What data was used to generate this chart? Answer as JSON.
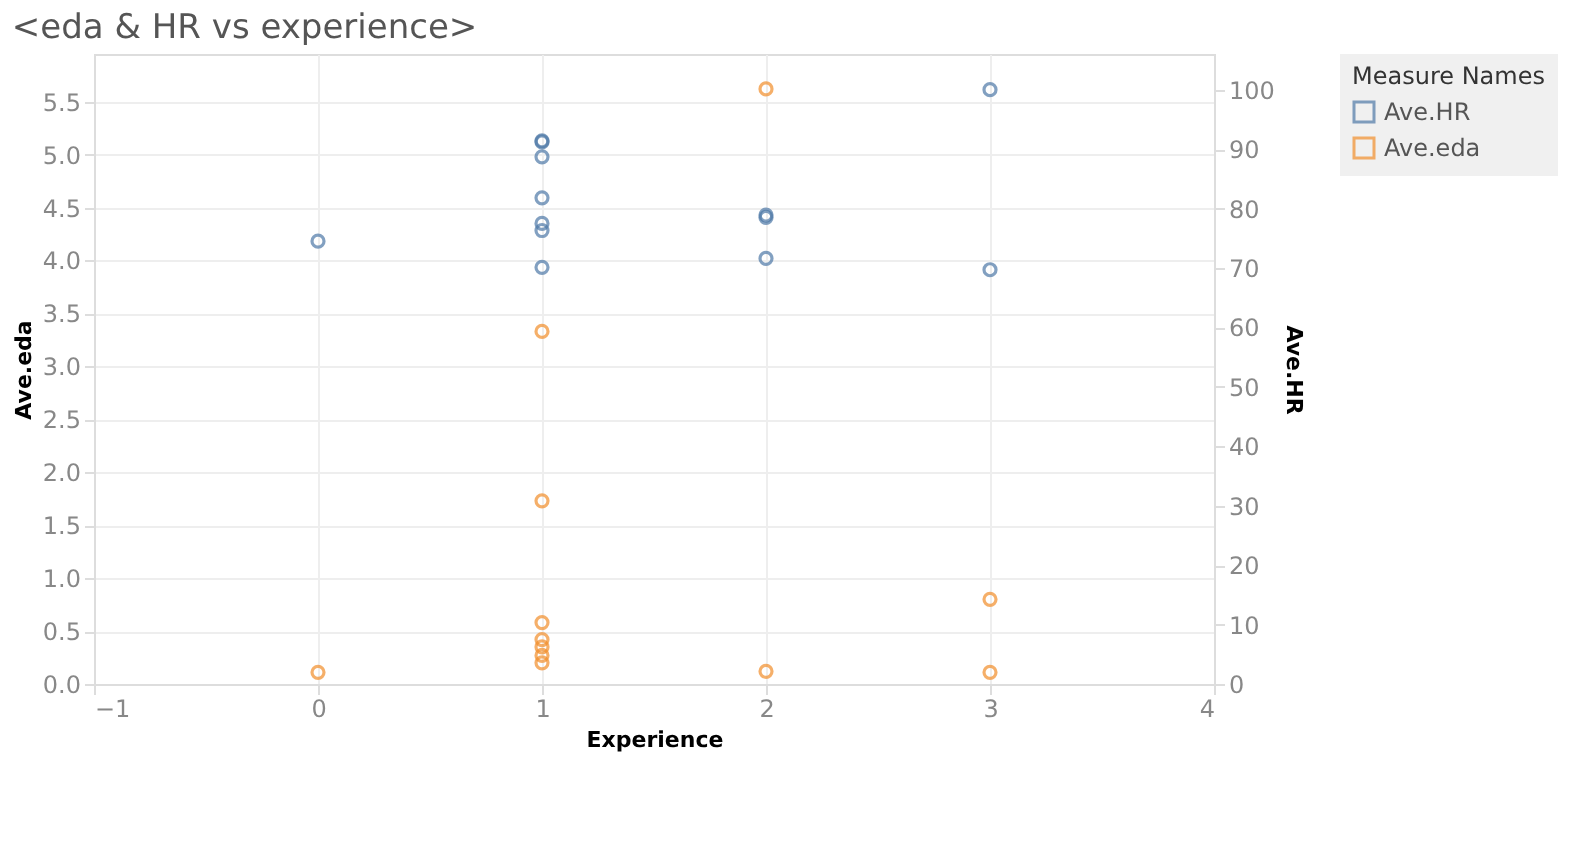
{
  "chart_data": {
    "type": "scatter",
    "title": "<eda & HR vs experience>",
    "xlabel": "Experience",
    "ylabel": "Ave.eda",
    "y2label": "Ave.HR",
    "legend_title": "Measure Names",
    "series": [
      {
        "name": "Ave.HR",
        "color": "#4e79a7",
        "axis": "y2",
        "x": [
          0,
          1,
          1,
          1,
          1,
          1,
          1,
          1,
          2,
          2,
          2,
          3,
          3
        ],
        "values": [
          74.5,
          91.4,
          91.2,
          88.7,
          81.8,
          77.5,
          76.3,
          70.1,
          78.9,
          78.5,
          71.6,
          100,
          69.7
        ]
      },
      {
        "name": "Ave.eda",
        "color": "#f28e2b",
        "x": [
          0,
          1,
          1,
          1,
          1,
          1,
          1,
          1,
          2,
          2,
          3,
          3
        ],
        "values": [
          0.11,
          3.33,
          1.73,
          0.58,
          0.42,
          0.35,
          0.27,
          0.2,
          0.12,
          5.62,
          0.11,
          0.8
        ]
      }
    ],
    "xlim": [
      -1,
      4
    ],
    "xticks": [
      -1,
      0,
      1,
      2,
      3,
      4
    ],
    "ylim": [
      0,
      5.95
    ],
    "yticks": [
      {
        "value": 0,
        "label": "0.0"
      },
      0.5,
      {
        "value": 1,
        "label": "1.0"
      },
      1.5,
      {
        "value": 2,
        "label": "2.0"
      },
      2.5,
      {
        "value": 3,
        "label": "3.0"
      },
      3.5,
      {
        "value": 4,
        "label": "4.0"
      },
      4.5,
      {
        "value": 5,
        "label": "5.0"
      },
      5.5
    ],
    "y2lim": [
      0,
      106
    ],
    "y2ticks": [
      0,
      10,
      20,
      30,
      40,
      50,
      60,
      70,
      80,
      90,
      100
    ],
    "grid": true,
    "legend": "right",
    "marker": "circle"
  }
}
